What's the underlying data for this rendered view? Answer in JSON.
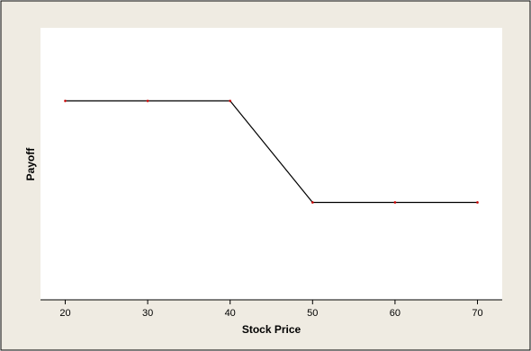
{
  "colors": {
    "outer_background": "#efebe2",
    "frame_border": "#000000",
    "plot_background": "#ffffff",
    "line": "#000000",
    "marker": "#cc0000"
  },
  "chart_data": {
    "type": "line",
    "title": "",
    "xlabel": "Stock Price",
    "ylabel": "Payoff",
    "x": [
      20,
      30,
      40,
      50,
      60,
      70
    ],
    "series": [
      {
        "values": [
          10,
          10,
          10,
          0,
          0,
          0
        ]
      }
    ],
    "xticks": [
      20,
      30,
      40,
      50,
      60,
      70
    ],
    "yticks": [],
    "xlim": [
      17,
      73
    ],
    "ylim": [
      -9.6,
      17.2
    ],
    "grid": false,
    "legend": "none"
  }
}
